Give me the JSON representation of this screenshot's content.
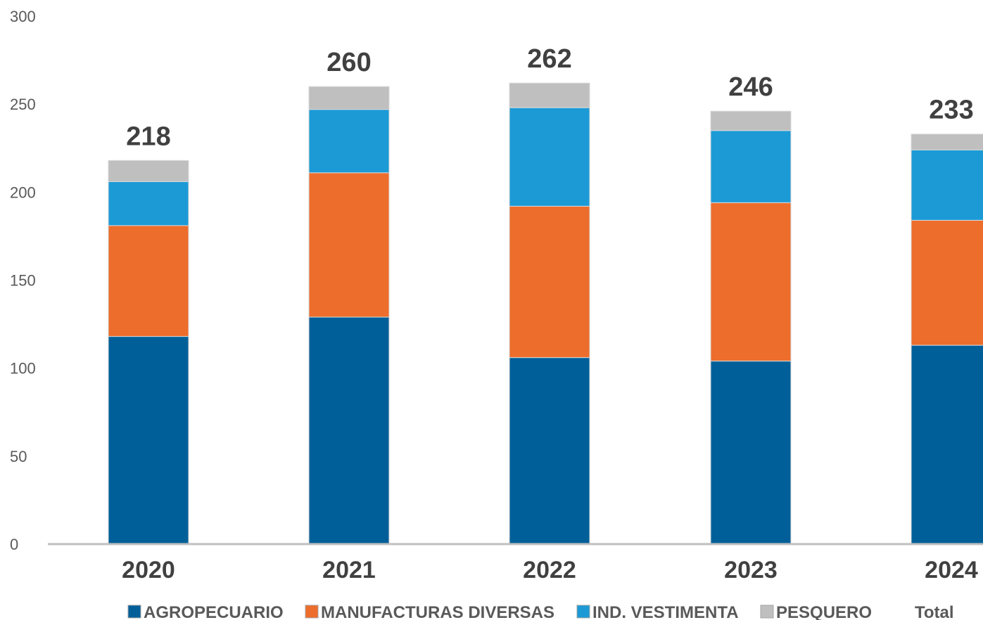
{
  "chart_data": {
    "type": "bar",
    "stacked": true,
    "title": "",
    "xlabel": "",
    "ylabel": "",
    "ylim": [
      0,
      300
    ],
    "yticks": [
      "0",
      "50",
      "100",
      "150",
      "200",
      "250",
      "300"
    ],
    "categories": [
      "2020",
      "2021",
      "2022",
      "2023",
      "2024"
    ],
    "series": [
      {
        "name": "AGROPECUARIO",
        "color": "#005F99",
        "values": [
          118,
          129,
          106,
          104,
          113
        ]
      },
      {
        "name": "MANUFACTURAS DIVERSAS",
        "color": "#ED6D2C",
        "values": [
          63,
          82,
          86,
          90,
          71
        ]
      },
      {
        "name": "IND. VESTIMENTA",
        "color": "#1C9AD6",
        "values": [
          25,
          36,
          56,
          41,
          40
        ]
      },
      {
        "name": "PESQUERO",
        "color": "#BFBFBF",
        "values": [
          12,
          13,
          14,
          11,
          9
        ]
      }
    ],
    "totals": [
      "218",
      "260",
      "262",
      "246",
      "233"
    ],
    "legend": {
      "position": "bottom",
      "items": [
        "AGROPECUARIO",
        "MANUFACTURAS DIVERSAS",
        "IND. VESTIMENTA",
        "PESQUERO",
        "Total"
      ]
    },
    "grid": false
  }
}
